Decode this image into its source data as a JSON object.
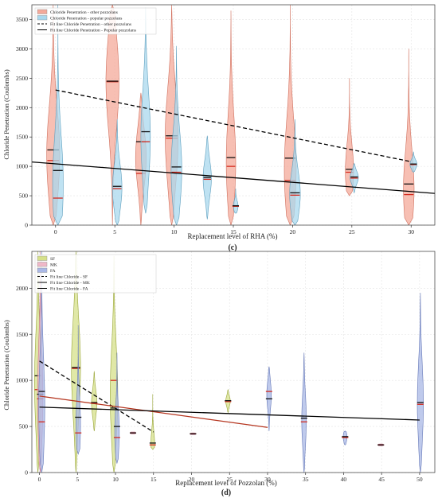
{
  "colors": {
    "rha_other": "#f4a99a",
    "rha_popular": "#a9d8ee",
    "sf": "#d6e08a",
    "mk": "#f0b8c8",
    "fa": "#aab8e6",
    "fit_sf": "#000000",
    "fit_mk": "#b5351f",
    "fit_fa": "#000000"
  },
  "chart_data": [
    {
      "type": "violin",
      "panel_label": "(c)",
      "xlabel": "Replacement level of RHA (%)",
      "ylabel": "Chloride Penetration (Coulombs)",
      "xlim": [
        -2,
        32
      ],
      "ylim": [
        0,
        3750
      ],
      "xticks": [
        0,
        5,
        10,
        15,
        20,
        25,
        30
      ],
      "yticks": [
        0,
        500,
        1000,
        1500,
        2000,
        2500,
        3000,
        3500
      ],
      "grid": true,
      "legend": {
        "position": "top-left",
        "entries": [
          {
            "label": "Chloride Penetration - other pozzolans",
            "kind": "patch",
            "color_key": "rha_other"
          },
          {
            "label": "Chloride Penetration - popular pozzolans",
            "kind": "patch",
            "color_key": "rha_popular"
          },
          {
            "label": "Fit line Chloride Penetration - other pozzolans",
            "kind": "dash"
          },
          {
            "label": "Fit line Chloride Penetration - Popular pozzolans",
            "kind": "solid"
          }
        ]
      },
      "violins": [
        {
          "series": "other",
          "x": -0.2,
          "min": 0,
          "max": 3750,
          "width": 0.55,
          "median": 1100,
          "mean": 1280
        },
        {
          "series": "popular",
          "x": 0.2,
          "min": 0,
          "max": 3750,
          "width": 0.45,
          "median": 460,
          "mean": 930
        },
        {
          "series": "other",
          "x": 4.8,
          "min": 0,
          "max": 3750,
          "width": 0.55,
          "median": 2440,
          "mean": 2450
        },
        {
          "series": "popular",
          "x": 5.2,
          "min": 0,
          "max": 1800,
          "width": 0.4,
          "median": 620,
          "mean": 660
        },
        {
          "series": "other",
          "x": 7.2,
          "min": 0,
          "max": 2250,
          "width": 0.45,
          "median": 880,
          "mean": 1420
        },
        {
          "series": "popular",
          "x": 7.6,
          "min": 200,
          "max": 3700,
          "width": 0.4,
          "median": 1420,
          "mean": 1590
        },
        {
          "series": "other",
          "x": 9.8,
          "min": 0,
          "max": 3750,
          "width": 0.55,
          "median": 1480,
          "mean": 1520
        },
        {
          "series": "popular",
          "x": 10.2,
          "min": 0,
          "max": 3050,
          "width": 0.45,
          "median": 900,
          "mean": 990
        },
        {
          "series": "popular",
          "x": 12.8,
          "min": 100,
          "max": 1520,
          "width": 0.35,
          "median": 780,
          "mean": 810
        },
        {
          "series": "other",
          "x": 14.8,
          "min": 0,
          "max": 3650,
          "width": 0.4,
          "median": 1000,
          "mean": 1150
        },
        {
          "series": "popular",
          "x": 15.2,
          "min": 200,
          "max": 620,
          "width": 0.2,
          "median": 320,
          "mean": 330
        },
        {
          "series": "other",
          "x": 19.8,
          "min": 0,
          "max": 3750,
          "width": 0.5,
          "median": 760,
          "mean": 1140
        },
        {
          "series": "popular",
          "x": 20.2,
          "min": 0,
          "max": 1800,
          "width": 0.45,
          "median": 510,
          "mean": 550
        },
        {
          "series": "other",
          "x": 24.8,
          "min": 500,
          "max": 2500,
          "width": 0.35,
          "median": 900,
          "mean": 950
        },
        {
          "series": "popular",
          "x": 25.2,
          "min": 550,
          "max": 1050,
          "width": 0.35,
          "median": 800,
          "mean": 820
        },
        {
          "series": "other",
          "x": 29.8,
          "min": 0,
          "max": 3000,
          "width": 0.45,
          "median": 520,
          "mean": 700
        },
        {
          "series": "popular",
          "x": 30.2,
          "min": 900,
          "max": 1250,
          "width": 0.3,
          "median": 1030,
          "mean": 1040
        }
      ],
      "fit_lines": [
        {
          "name": "Fit line Chloride Penetration - other pozzolans",
          "style": "dash",
          "x": [
            0,
            30
          ],
          "y": [
            2300,
            1080
          ]
        },
        {
          "name": "Fit line Chloride Penetration - Popular pozzolans",
          "style": "solid",
          "x": [
            -2,
            32
          ],
          "y": [
            1075,
            540
          ]
        }
      ]
    },
    {
      "type": "violin",
      "panel_label": "(d)",
      "xlabel": "Replacement level of Pozzolan (%)",
      "ylabel": "Chloride Penetration (Coulombs)",
      "xlim": [
        -1,
        52
      ],
      "ylim": [
        0,
        2400
      ],
      "xticks": [
        0,
        5,
        10,
        15,
        20,
        25,
        30,
        35,
        40,
        45,
        50
      ],
      "yticks": [
        0,
        500,
        1000,
        1500,
        2000
      ],
      "grid": true,
      "legend": {
        "position": "top-left",
        "entries": [
          {
            "label": "SF",
            "kind": "patch",
            "color_key": "sf"
          },
          {
            "label": "MK",
            "kind": "patch",
            "color_key": "mk"
          },
          {
            "label": "FA",
            "kind": "patch",
            "color_key": "fa"
          },
          {
            "label": "Fit line Chloride - SF",
            "kind": "dash"
          },
          {
            "label": "Fit line Chloride - MK",
            "kind": "solid"
          },
          {
            "label": "Fit line Chloride - FA",
            "kind": "solid"
          }
        ]
      },
      "violins": [
        {
          "series": "SF",
          "x": -0.2,
          "min": 0,
          "max": 2400,
          "width": 0.45,
          "median": 900,
          "mean": 1050
        },
        {
          "series": "MK",
          "x": 0.1,
          "min": 0,
          "max": 2400,
          "width": 0.35,
          "median": 800,
          "mean": 850
        },
        {
          "series": "FA",
          "x": 0.3,
          "min": 0,
          "max": 2400,
          "width": 0.4,
          "median": 550,
          "mean": 880
        },
        {
          "series": "SF",
          "x": 4.8,
          "min": 0,
          "max": 2400,
          "width": 0.6,
          "median": 1130,
          "mean": 1140
        },
        {
          "series": "FA",
          "x": 5.1,
          "min": 200,
          "max": 1600,
          "width": 0.3,
          "median": 430,
          "mean": 600
        },
        {
          "series": "SF",
          "x": 7.2,
          "min": 450,
          "max": 1100,
          "width": 0.35,
          "median": 750,
          "mean": 760
        },
        {
          "series": "SF",
          "x": 9.8,
          "min": 0,
          "max": 2350,
          "width": 0.5,
          "median": 1000,
          "mean": 700
        },
        {
          "series": "FA",
          "x": 10.2,
          "min": 100,
          "max": 1300,
          "width": 0.3,
          "median": 380,
          "mean": 500
        },
        {
          "series": "MK",
          "x": 12.3,
          "min": 420,
          "max": 440,
          "width": 0.3,
          "median": 430,
          "mean": 430
        },
        {
          "series": "SF",
          "x": 14.9,
          "min": 250,
          "max": 850,
          "width": 0.25,
          "median": 300,
          "mean": 320
        },
        {
          "series": "MK",
          "x": 20.2,
          "min": 410,
          "max": 430,
          "width": 0.3,
          "median": 420,
          "mean": 420
        },
        {
          "series": "SF",
          "x": 24.8,
          "min": 650,
          "max": 900,
          "width": 0.3,
          "median": 770,
          "mean": 780
        },
        {
          "series": "FA",
          "x": 30.2,
          "min": 450,
          "max": 1150,
          "width": 0.3,
          "median": 880,
          "mean": 800
        },
        {
          "series": "FA",
          "x": 34.8,
          "min": 0,
          "max": 1300,
          "width": 0.3,
          "median": 550,
          "mean": 590
        },
        {
          "series": "FA",
          "x": 40.2,
          "min": 300,
          "max": 450,
          "width": 0.25,
          "median": 380,
          "mean": 390
        },
        {
          "series": "MK",
          "x": 44.9,
          "min": 290,
          "max": 310,
          "width": 0.3,
          "median": 300,
          "mean": 300
        },
        {
          "series": "FA",
          "x": 50.1,
          "min": 0,
          "max": 1950,
          "width": 0.4,
          "median": 740,
          "mean": 760
        }
      ],
      "fit_lines": [
        {
          "name": "Fit line Chloride - SF",
          "style": "dash",
          "color_key": "fit_sf",
          "x": [
            0,
            15
          ],
          "y": [
            1210,
            440
          ]
        },
        {
          "name": "Fit line Chloride - MK",
          "style": "solid",
          "color_key": "fit_mk",
          "x": [
            0,
            30
          ],
          "y": [
            830,
            490
          ]
        },
        {
          "name": "Fit line Chloride - FA",
          "style": "solid",
          "color_key": "fit_fa",
          "x": [
            0,
            50
          ],
          "y": [
            710,
            570
          ]
        }
      ]
    }
  ]
}
